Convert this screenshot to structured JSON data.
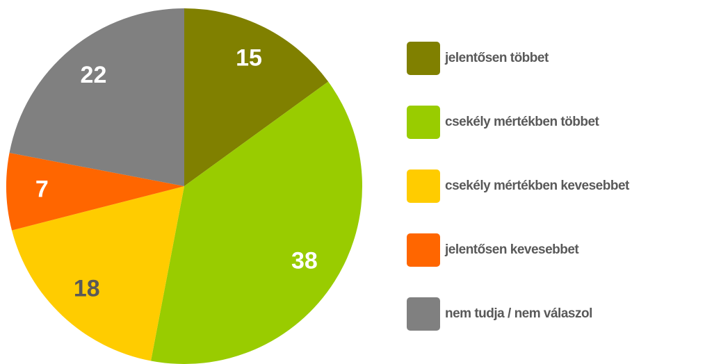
{
  "chart_data": {
    "type": "pie",
    "categories": [
      "jelentősen többet",
      "csekély mértékben többet",
      "csekély mértékben kevesebbet",
      "jelentősen kevesebbet",
      "nem tudja / nem válaszol"
    ],
    "values": [
      15,
      38,
      18,
      7,
      22
    ],
    "colors": [
      "#808000",
      "#99cc00",
      "#ffcc00",
      "#ff6600",
      "#808080"
    ],
    "label_colors": [
      "#ffffff",
      "#ffffff",
      "#595959",
      "#ffffff",
      "#ffffff"
    ],
    "legend": "right"
  }
}
